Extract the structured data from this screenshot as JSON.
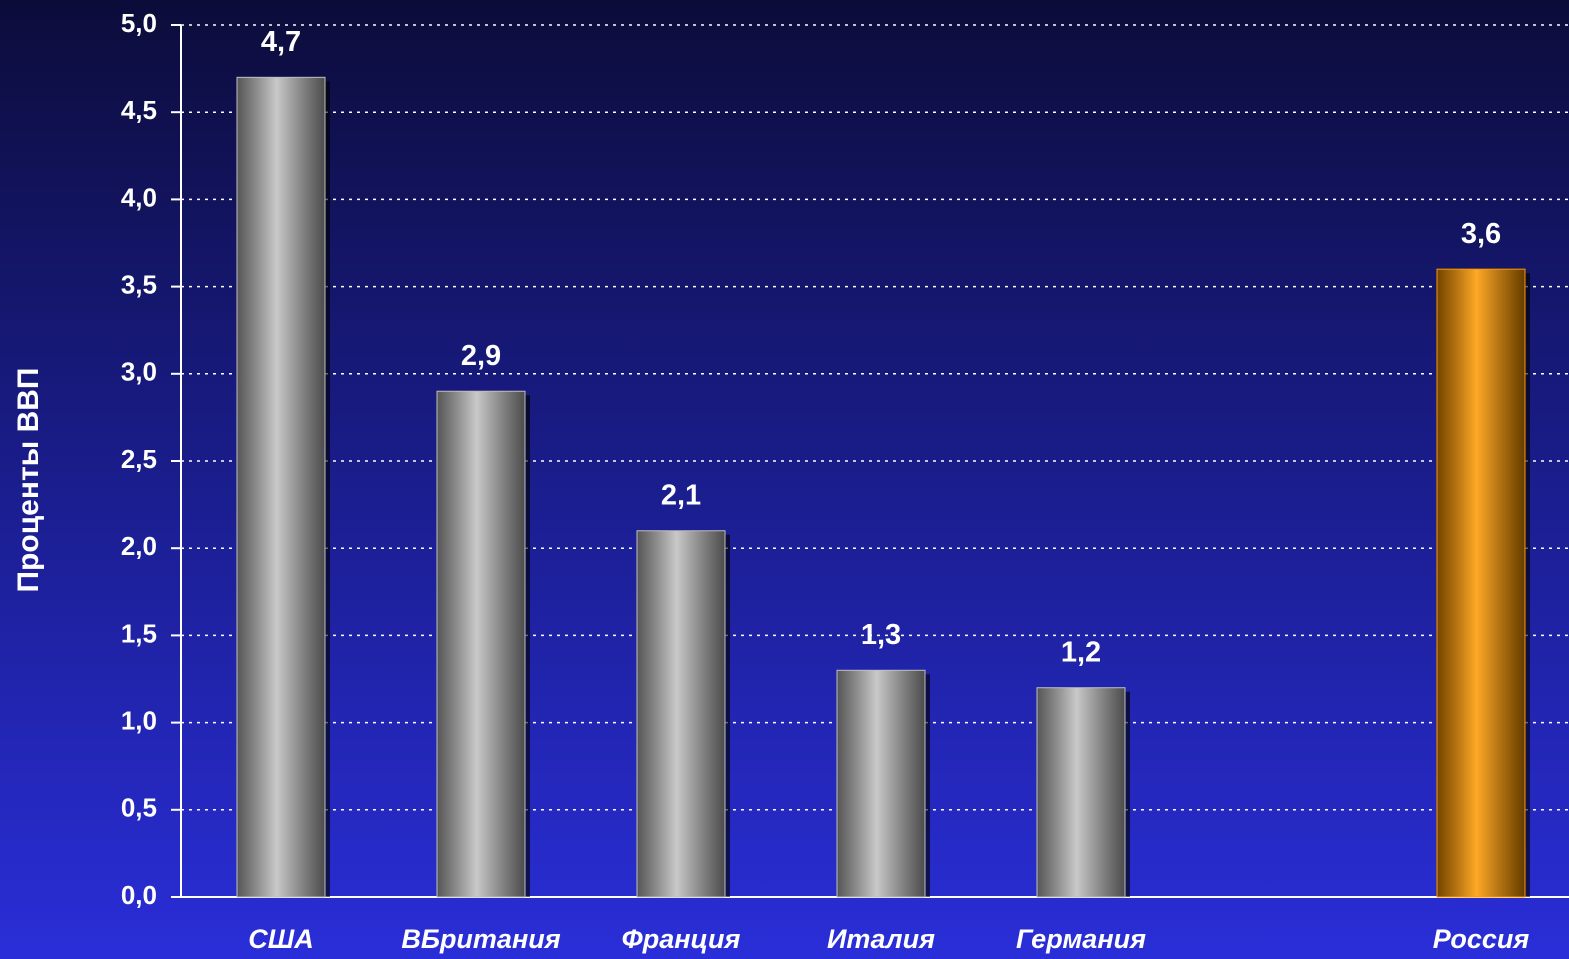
{
  "chart_data": {
    "type": "bar",
    "y_label": "Проценты ВВП",
    "categories": [
      "США",
      "ВБритания",
      "Франция",
      "Италия",
      "Германия",
      null,
      "Россия"
    ],
    "values": [
      4.7,
      2.9,
      2.1,
      1.3,
      1.2,
      null,
      3.6
    ],
    "value_labels": [
      "4,7",
      "2,9",
      "2,1",
      "1,3",
      "1,2",
      null,
      "3,6"
    ],
    "colors": [
      "#bfbfbf",
      "#bfbfbf",
      "#bfbfbf",
      "#bfbfbf",
      "#bfbfbf",
      null,
      "#ff9900"
    ],
    "ylim": [
      0,
      5
    ],
    "yticks": [
      {
        "value": 0,
        "label": "0,0"
      },
      {
        "value": 0.5,
        "label": "0,5"
      },
      {
        "value": 1,
        "label": "1,0"
      },
      {
        "value": 1.5,
        "label": "1,5"
      },
      {
        "value": 2,
        "label": "2,0"
      },
      {
        "value": 2.5,
        "label": "2,5"
      },
      {
        "value": 3,
        "label": "3,0"
      },
      {
        "value": 3.5,
        "label": "3,5"
      },
      {
        "value": 4,
        "label": "4,0"
      },
      {
        "value": 4.5,
        "label": "4,5"
      },
      {
        "value": 5,
        "label": "5,0"
      }
    ],
    "grid": true
  }
}
